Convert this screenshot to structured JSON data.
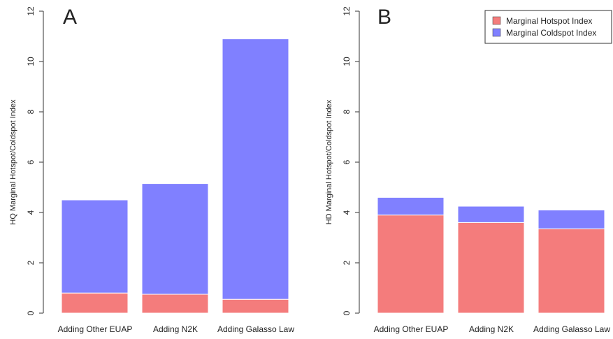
{
  "chart_data": [
    {
      "type": "bar",
      "stacked": true,
      "panel_label": "A",
      "categories": [
        "Adding Other EUAP",
        "Adding N2K",
        "Adding Galasso Law"
      ],
      "series": [
        {
          "name": "Marginal Hotspot Index",
          "values": [
            0.8,
            0.75,
            0.55
          ]
        },
        {
          "name": "Marginal Coldspot Index",
          "values": [
            3.7,
            4.4,
            10.35
          ]
        }
      ],
      "ylabel": "HQ Marginal Hotspot/Coldspot Index",
      "ylim": [
        0,
        12
      ],
      "yticks": [
        0,
        2,
        4,
        6,
        8,
        10,
        12
      ]
    },
    {
      "type": "bar",
      "stacked": true,
      "panel_label": "B",
      "categories": [
        "Adding Other EUAP",
        "Adding N2K",
        "Adding Galasso Law"
      ],
      "series": [
        {
          "name": "Marginal Hotspot Index",
          "values": [
            3.9,
            3.6,
            3.35
          ]
        },
        {
          "name": "Marginal Coldspot Index",
          "values": [
            0.7,
            0.65,
            0.75
          ]
        }
      ],
      "ylabel": "HD Marginal Hotspot/Coldspot Index",
      "ylim": [
        0,
        12
      ],
      "yticks": [
        0,
        2,
        4,
        6,
        8,
        10,
        12
      ],
      "legend": {
        "placement": "top-right",
        "entries": [
          "Marginal Hotspot Index",
          "Marginal Coldspot Index"
        ]
      }
    }
  ],
  "colors": {
    "hotspot": "#f47c7c",
    "coldspot": "#8080ff",
    "axis": "#333333"
  }
}
